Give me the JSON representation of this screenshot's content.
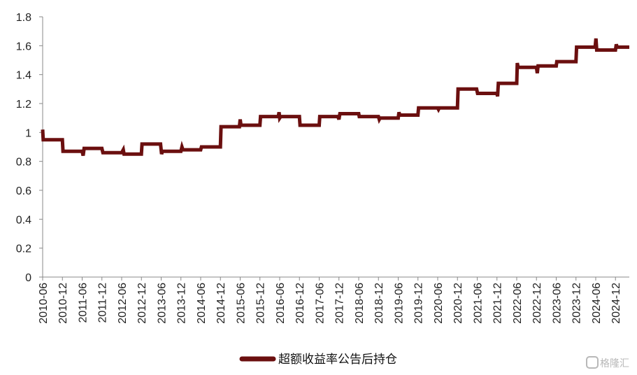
{
  "chart_data": {
    "type": "line",
    "title": "",
    "xlabel": "",
    "ylabel": "",
    "ylim": [
      0,
      1.8
    ],
    "yticks": [
      "0",
      "0.2",
      "0.4",
      "0.6",
      "0.8",
      "1",
      "1.2",
      "1.4",
      "1.6",
      "1.8"
    ],
    "categories": [
      "2010-06",
      "2010-12",
      "2011-06",
      "2011-12",
      "2012-06",
      "2012-12",
      "2013-06",
      "2013-12",
      "2014-06",
      "2014-12",
      "2015-06",
      "2015-12",
      "2016-06",
      "2016-12",
      "2017-06",
      "2017-12",
      "2018-06",
      "2018-12",
      "2019-06",
      "2019-12",
      "2020-06",
      "2020-12",
      "2021-06",
      "2021-12",
      "2022-06",
      "2022-12",
      "2023-06",
      "2023-12",
      "2024-06",
      "2024-12"
    ],
    "grid": false,
    "legend_position": "bottom-center",
    "series": [
      {
        "name": "超额收益率公告后持仓",
        "color": "#6b0f0f",
        "points": [
          [
            0.0,
            1.02
          ],
          [
            0.03,
            0.95
          ],
          [
            1.0,
            0.95
          ],
          [
            1.03,
            0.87
          ],
          [
            2.0,
            0.87
          ],
          [
            2.05,
            0.84
          ],
          [
            2.1,
            0.89
          ],
          [
            3.0,
            0.89
          ],
          [
            3.05,
            0.86
          ],
          [
            4.0,
            0.86
          ],
          [
            4.08,
            0.88
          ],
          [
            4.12,
            0.85
          ],
          [
            5.0,
            0.85
          ],
          [
            5.03,
            0.92
          ],
          [
            5.97,
            0.92
          ],
          [
            6.02,
            0.85
          ],
          [
            6.06,
            0.87
          ],
          [
            7.0,
            0.87
          ],
          [
            7.05,
            0.9
          ],
          [
            7.1,
            0.88
          ],
          [
            8.0,
            0.88
          ],
          [
            8.04,
            0.9
          ],
          [
            9.0,
            0.9
          ],
          [
            9.03,
            1.04
          ],
          [
            9.96,
            1.04
          ],
          [
            10.0,
            1.09
          ],
          [
            10.04,
            1.05
          ],
          [
            11.0,
            1.05
          ],
          [
            11.03,
            1.11
          ],
          [
            11.93,
            1.11
          ],
          [
            11.97,
            1.14
          ],
          [
            12.0,
            1.1
          ],
          [
            12.05,
            1.11
          ],
          [
            13.0,
            1.11
          ],
          [
            13.03,
            1.05
          ],
          [
            14.0,
            1.05
          ],
          [
            14.03,
            1.11
          ],
          [
            14.95,
            1.11
          ],
          [
            15.0,
            1.09
          ],
          [
            15.05,
            1.13
          ],
          [
            16.0,
            1.13
          ],
          [
            16.03,
            1.11
          ],
          [
            17.0,
            1.11
          ],
          [
            17.04,
            1.09
          ],
          [
            17.08,
            1.1
          ],
          [
            18.0,
            1.1
          ],
          [
            18.04,
            1.14
          ],
          [
            18.08,
            1.12
          ],
          [
            19.0,
            1.12
          ],
          [
            19.03,
            1.17
          ],
          [
            20.0,
            1.17
          ],
          [
            20.04,
            1.16
          ],
          [
            20.08,
            1.17
          ],
          [
            21.0,
            1.17
          ],
          [
            21.03,
            1.3
          ],
          [
            21.97,
            1.3
          ],
          [
            22.02,
            1.27
          ],
          [
            23.0,
            1.27
          ],
          [
            23.03,
            1.25
          ],
          [
            23.07,
            1.34
          ],
          [
            24.0,
            1.34
          ],
          [
            24.03,
            1.48
          ],
          [
            24.07,
            1.45
          ],
          [
            25.0,
            1.45
          ],
          [
            25.04,
            1.41
          ],
          [
            25.08,
            1.46
          ],
          [
            26.0,
            1.46
          ],
          [
            26.03,
            1.49
          ],
          [
            27.0,
            1.49
          ],
          [
            27.03,
            1.59
          ],
          [
            27.97,
            1.59
          ],
          [
            28.01,
            1.65
          ],
          [
            28.05,
            1.57
          ],
          [
            29.0,
            1.57
          ],
          [
            29.04,
            1.61
          ],
          [
            29.08,
            1.59
          ],
          [
            29.7,
            1.59
          ]
        ]
      }
    ]
  },
  "watermark": "格隆汇"
}
